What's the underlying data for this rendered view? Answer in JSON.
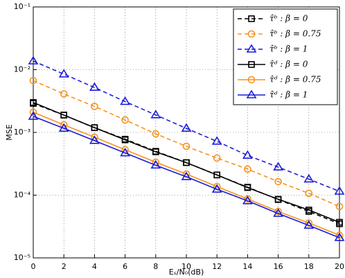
{
  "chart_data": {
    "type": "line",
    "x_label": "Eₛ/N₀(dB)",
    "y_label": "MSE",
    "log_y": true,
    "grid": true,
    "legend": "upper right",
    "x": [
      0,
      2,
      4,
      6,
      8,
      10,
      12,
      14,
      16,
      18,
      20
    ],
    "xlim": [
      0,
      20
    ],
    "xticks": [
      0,
      2,
      4,
      6,
      8,
      10,
      12,
      14,
      16,
      18,
      20
    ],
    "ylim": [
      1e-05,
      0.1
    ],
    "yticks": [
      {
        "value": 1e-05,
        "label": "10⁻⁵"
      },
      {
        "value": 0.0001,
        "label": "10⁻⁴"
      },
      {
        "value": 0.001,
        "label": "10⁻³"
      },
      {
        "value": 0.01,
        "label": "10⁻²"
      },
      {
        "value": 0.1,
        "label": "10⁻¹"
      }
    ],
    "series": [
      {
        "name": "τ̂ᵇ : β = 0",
        "color": "#000000",
        "dash": true,
        "marker": "square",
        "values": [
          0.0029,
          0.00189,
          0.00119,
          0.00078,
          0.0005,
          0.00033,
          0.00021,
          0.000134,
          8.5e-05,
          5.5e-05,
          3.5e-05
        ]
      },
      {
        "name": "τ̂ᵇ : β = 0.75",
        "color": "#f7931e",
        "dash": true,
        "marker": "circle",
        "values": [
          0.0067,
          0.0041,
          0.0026,
          0.00158,
          0.00095,
          0.0006,
          0.00039,
          0.00026,
          0.000164,
          0.000107,
          6.6e-05
        ]
      },
      {
        "name": "τ̂ᵇ : β = 1",
        "color": "#1c1cd6",
        "dash": true,
        "marker": "triangle",
        "values": [
          0.0137,
          0.0085,
          0.0052,
          0.0031,
          0.0019,
          0.00116,
          0.00072,
          0.00043,
          0.00028,
          0.00018,
          0.000115
        ]
      },
      {
        "name": "τ̂ᵈ : β = 0",
        "color": "#000000",
        "dash": false,
        "marker": "square",
        "values": [
          0.003,
          0.00189,
          0.00119,
          0.00076,
          0.00049,
          0.00033,
          0.00021,
          0.000132,
          8.6e-05,
          5.8e-05,
          3.7e-05
        ]
      },
      {
        "name": "τ̂ᵈ : β = 0.75",
        "color": "#f7931e",
        "dash": false,
        "marker": "circle",
        "values": [
          0.0021,
          0.00132,
          0.00084,
          0.00053,
          0.000335,
          0.000217,
          0.000137,
          8.7e-05,
          5.5e-05,
          3.6e-05,
          2.3e-05
        ]
      },
      {
        "name": "τ̂ᵈ : β = 1",
        "color": "#1c1cd6",
        "dash": false,
        "marker": "triangle",
        "values": [
          0.0018,
          0.00116,
          0.00074,
          0.00047,
          0.0003,
          0.000196,
          0.000124,
          8.1e-05,
          5.1e-05,
          3.3e-05,
          2.1e-05
        ]
      }
    ]
  }
}
